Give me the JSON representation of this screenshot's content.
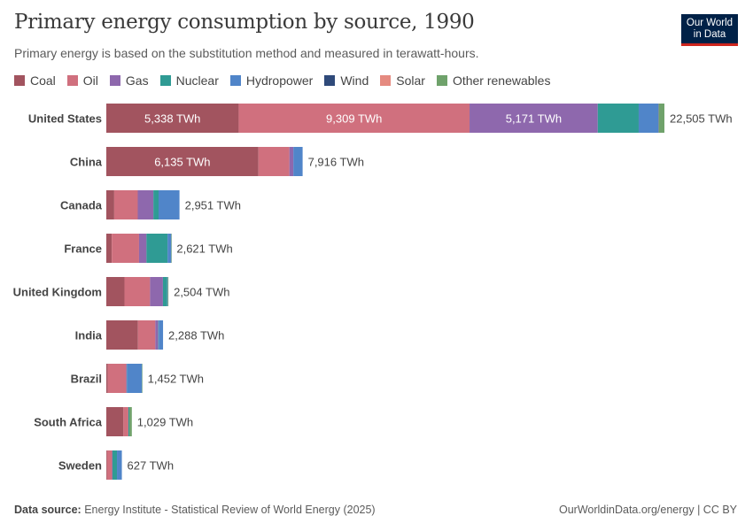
{
  "title": "Primary energy consumption by source, 1990",
  "subtitle": "Primary energy is based on the substitution method and measured in terawatt-hours.",
  "logo": {
    "line1": "Our World",
    "line2": "in Data"
  },
  "footer": {
    "source_label": "Data source:",
    "source_text": " Energy Institute - Statistical Review of World Energy (2025)",
    "right": "OurWorldinData.org/energy | CC BY"
  },
  "chart_data": {
    "type": "bar",
    "orientation": "horizontal",
    "stacked": true,
    "unit": "TWh",
    "categories": [
      "United States",
      "China",
      "Canada",
      "France",
      "United Kingdom",
      "India",
      "Brazil",
      "South Africa",
      "Sweden"
    ],
    "series": [
      {
        "name": "Coal",
        "color": "#a2545f",
        "values": [
          5338,
          6135,
          318,
          220,
          733,
          1276,
          60,
          690,
          30
        ]
      },
      {
        "name": "Oil",
        "color": "#d0707e",
        "values": [
          9309,
          1248,
          950,
          1100,
          1030,
          700,
          740,
          200,
          200
        ]
      },
      {
        "name": "Gas",
        "color": "#8e68ad",
        "values": [
          5171,
          160,
          630,
          300,
          520,
          120,
          30,
          0,
          20
        ]
      },
      {
        "name": "Nuclear",
        "color": "#2f9b94",
        "values": [
          1650,
          0,
          210,
          850,
          170,
          20,
          10,
          40,
          180
        ]
      },
      {
        "name": "Hydropower",
        "color": "#5085c9",
        "values": [
          800,
          373,
          843,
          150,
          25,
          172,
          600,
          0,
          197
        ]
      },
      {
        "name": "Wind",
        "color": "#2f4a7a",
        "values": [
          10,
          0,
          0,
          0,
          0,
          0,
          0,
          0,
          0
        ]
      },
      {
        "name": "Solar",
        "color": "#e58a80",
        "values": [
          2,
          0,
          0,
          0,
          0,
          0,
          0,
          0,
          0
        ]
      },
      {
        "name": "Other renewables",
        "color": "#6fa26b",
        "values": [
          225,
          0,
          0,
          1,
          26,
          0,
          12,
          99,
          0
        ]
      }
    ],
    "totals": [
      "22,505 TWh",
      "7,916 TWh",
      "2,951 TWh",
      "2,621 TWh",
      "2,504 TWh",
      "2,288 TWh",
      "1,452 TWh",
      "1,029 TWh",
      "627 TWh"
    ],
    "segment_labels": [
      {
        "row": 0,
        "series": 0,
        "text": "5,338 TWh"
      },
      {
        "row": 0,
        "series": 1,
        "text": "9,309 TWh"
      },
      {
        "row": 0,
        "series": 2,
        "text": "5,171 TWh"
      },
      {
        "row": 1,
        "series": 0,
        "text": "6,135 TWh"
      }
    ],
    "xlim": [
      0,
      22505
    ],
    "legend_position": "top"
  }
}
